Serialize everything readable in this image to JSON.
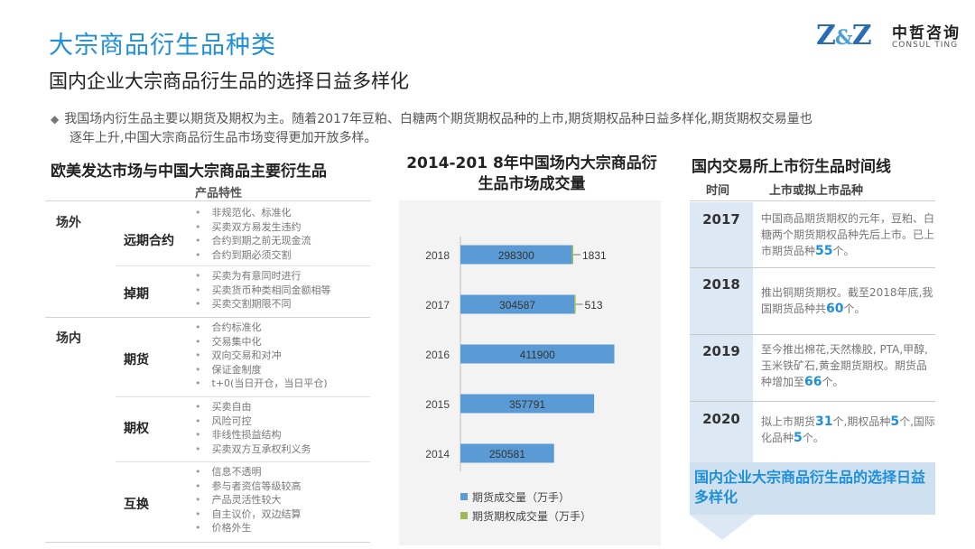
{
  "header": {
    "title": "大宗商品衍生品种类",
    "subtitle": "国内企业大宗商品衍生品的选择日益多样化",
    "logo_cn": "中哲咨询",
    "logo_en": "CONSUL TING",
    "logo_mark_left": "Z",
    "logo_mark_amp": "&",
    "logo_mark_right": "Z"
  },
  "intro": {
    "line1": "我国场内衍生品主要以期货及期权为主。随着2017年豆粕、白糖两个期货期权品种的上市,期货期权品种日益多样化,期货期权交易量也",
    "line2": "逐年上升,中国大宗商品衍生品市场变得更加开放多样。"
  },
  "left_table": {
    "title": "欧美发达市场与中国大宗商品主要衍生品",
    "header": "产品特性",
    "categories": [
      "场外",
      "场内"
    ],
    "rows": [
      {
        "type": "远期合约",
        "features": [
          "非规范化、标准化",
          "买卖双方易发生违约",
          "合约到期之前无现金流",
          "合约到期必须交割"
        ]
      },
      {
        "type": "掉期",
        "features": [
          "买卖为有意同时进行",
          "买卖货币种类相同金额相等",
          "买卖交割期限不同"
        ]
      },
      {
        "type": "期货",
        "features": [
          "合约标准化",
          "交易集中化",
          "双向交易和对冲",
          "保证金制度",
          "t+0(当日开仓，当日平仓)"
        ]
      },
      {
        "type": "期权",
        "features": [
          "买卖自由",
          "风险可控",
          "非线性损益结构",
          "买卖双方互承权利义务"
        ]
      },
      {
        "type": "互换",
        "features": [
          "信息不透明",
          "参与者资信等级较高",
          "产品灵活性较大",
          "自主议价，双边结算",
          "价格外生"
        ]
      }
    ]
  },
  "chart_data": {
    "type": "bar",
    "orientation": "horizontal",
    "title": "2014-201 8年中国场内大宗商品衍生品市场成交量",
    "categories": [
      "2018",
      "2017",
      "2016",
      "2015",
      "2014"
    ],
    "series": [
      {
        "name": "期货成交量（万手）",
        "color": "#5b9bd5",
        "values": [
          298300,
          304587,
          411900,
          357791,
          250581
        ]
      },
      {
        "name": "期货期权成交量（万手）",
        "color": "#9bbb59",
        "values": [
          1831,
          513,
          null,
          null,
          null
        ]
      }
    ],
    "labels_futures": [
      "298300",
      "304587",
      "411900",
      "357791",
      "250581"
    ],
    "labels_options": [
      "1831",
      "513",
      "",
      "",
      ""
    ],
    "legend_position": "bottom"
  },
  "right_timeline": {
    "title": "国内交易所上市衍生品时间线",
    "col_time": "时间",
    "col_item": "上市或拟上市品种",
    "entries": [
      {
        "year": "2017",
        "text_a": "中国商品期货期权的元年，豆粕、白糖两个期货期权品种先后上市。已上市期货品种",
        "hl": "55",
        "text_b": "个。"
      },
      {
        "year": "2018",
        "text_a": "推出铜期货期权。截至2018年底,我国期货品种共",
        "hl": "60",
        "text_b": "个。"
      },
      {
        "year": "2019",
        "text_a": "至今推出棉花,天然橡胶, PTA,甲醇,玉米铁矿石,黄金期货期权。期货品种增加至",
        "hl": "66",
        "text_b": "个。"
      },
      {
        "year": "2020",
        "text_a": "拟上市期货",
        "hl": "31",
        "text_b": "个,期权品种",
        "hl2": "5",
        "text_c": "个,国际化品种",
        "hl3": "5",
        "text_d": "个。"
      }
    ],
    "conclusion": "国内企业大宗商品衍生品的选择日益多样化"
  }
}
